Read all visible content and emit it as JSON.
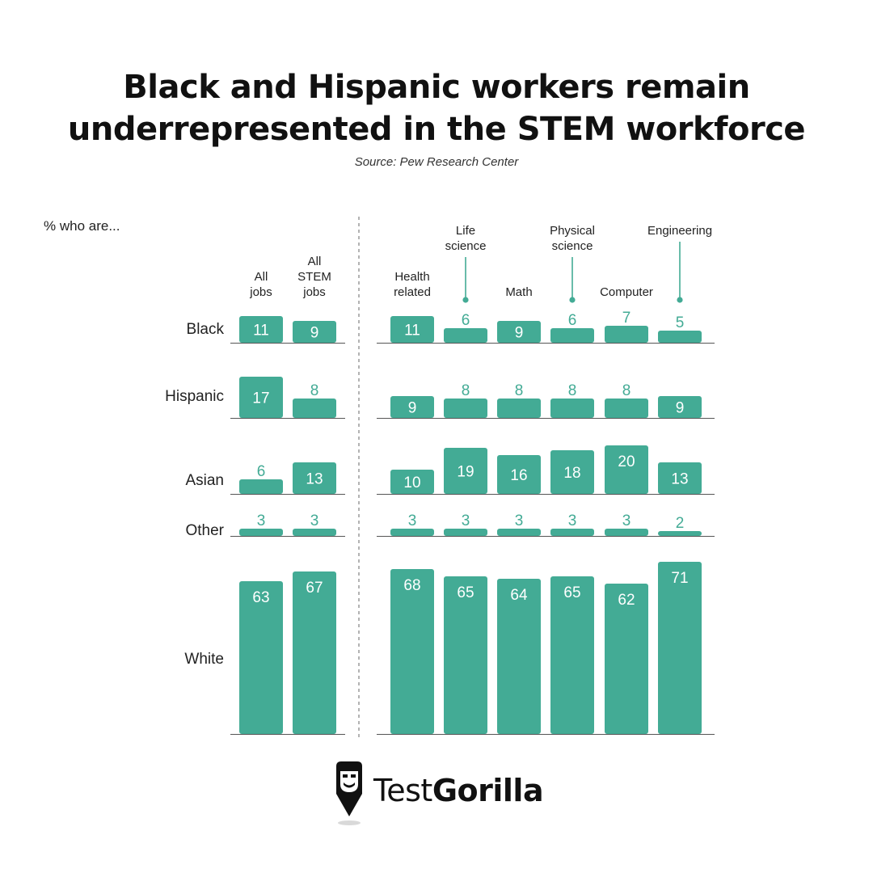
{
  "header": {
    "title_line1": "Black and Hispanic workers remain",
    "title_line2": "underrepresented in the STEM workforce",
    "source": "Source: Pew Research Center"
  },
  "brand": {
    "name_light": "Test",
    "name_bold": "Gorilla",
    "logo_icon": "gorilla-pencil-icon"
  },
  "colors": {
    "bar": "#43ab95",
    "label_inside": "#ffffff",
    "label_outside": "#43ab95",
    "axis": "#555555",
    "text": "#222222"
  },
  "chart_data": {
    "type": "bar",
    "y_intro_label": "% who are...",
    "groups": [
      {
        "name": "left",
        "categories": [
          "All jobs",
          "All STEM jobs"
        ],
        "category_label_lines": [
          [
            "All",
            "jobs"
          ],
          [
            "All",
            "STEM",
            "jobs"
          ]
        ],
        "series": [
          {
            "name": "Black",
            "values": [
              11,
              9
            ]
          },
          {
            "name": "Hispanic",
            "values": [
              17,
              8
            ]
          },
          {
            "name": "Asian",
            "values": [
              6,
              13
            ]
          },
          {
            "name": "Other",
            "values": [
              3,
              3
            ]
          },
          {
            "name": "White",
            "values": [
              63,
              67
            ]
          }
        ]
      },
      {
        "name": "right",
        "categories": [
          "Health related",
          "Life science",
          "Math",
          "Physical science",
          "Computer",
          "Engineering"
        ],
        "category_label_lines": [
          [
            "Health",
            "related"
          ],
          [
            "Life",
            "science"
          ],
          [
            "Math"
          ],
          [
            "Physical",
            "science"
          ],
          [
            "Computer"
          ],
          [
            "Engineering"
          ]
        ],
        "series": [
          {
            "name": "Black",
            "values": [
              11,
              6,
              9,
              6,
              7,
              5
            ]
          },
          {
            "name": "Hispanic",
            "values": [
              9,
              8,
              8,
              8,
              8,
              9
            ]
          },
          {
            "name": "Asian",
            "values": [
              10,
              19,
              16,
              18,
              20,
              13
            ]
          },
          {
            "name": "Other",
            "values": [
              3,
              3,
              3,
              3,
              3,
              2
            ]
          },
          {
            "name": "White",
            "values": [
              68,
              65,
              64,
              65,
              62,
              71
            ]
          }
        ]
      }
    ]
  }
}
